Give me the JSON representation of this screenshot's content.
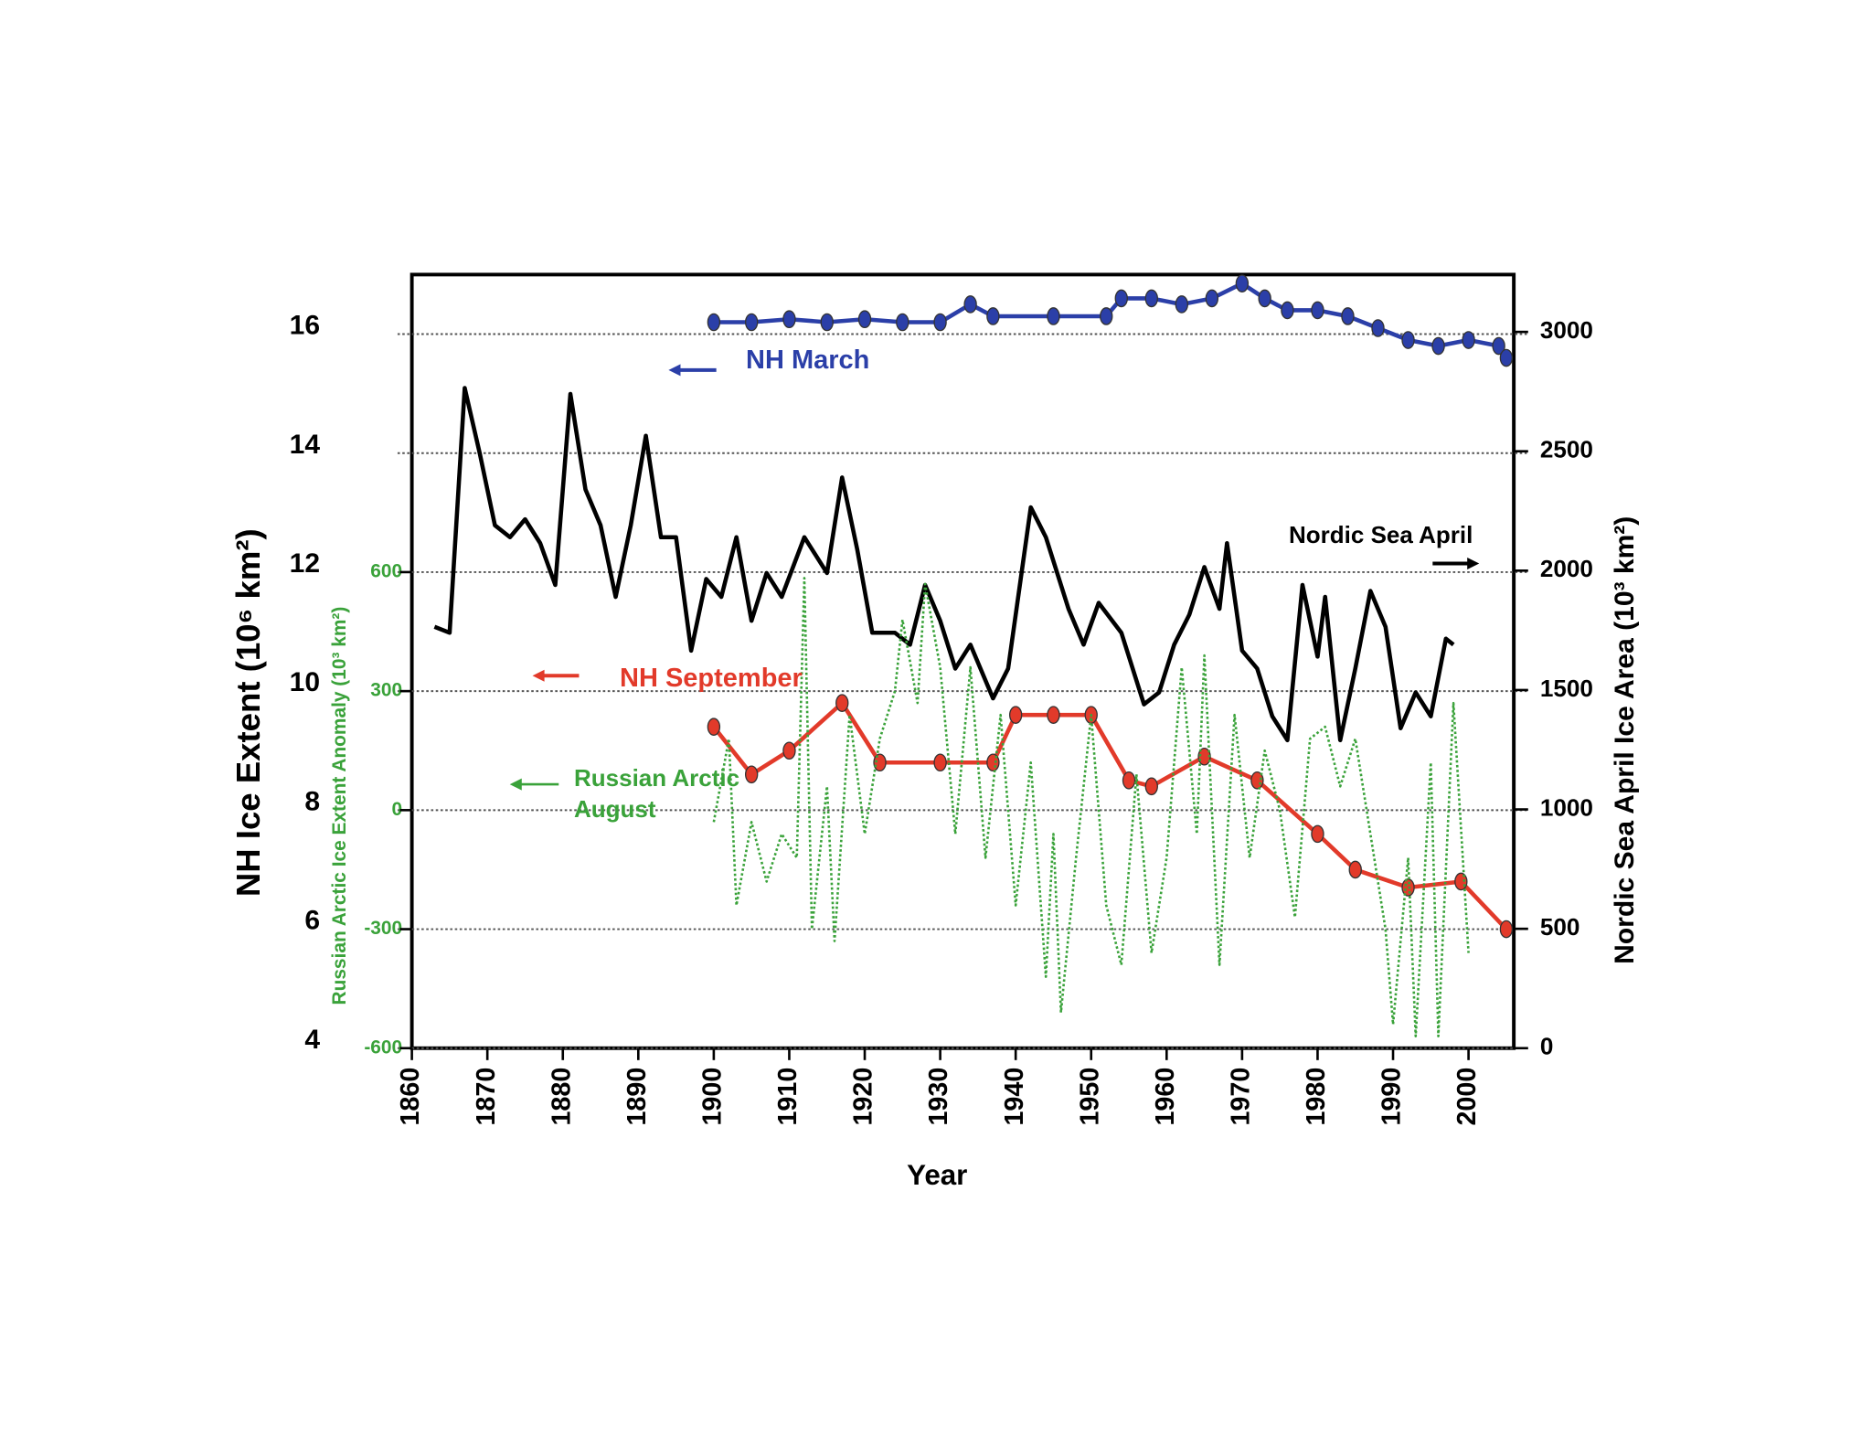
{
  "chart_data": {
    "type": "line",
    "xlabel": "Year",
    "ylabel": "NH Ice Extent (10⁶ km²)",
    "y2label": "Nordic Sea April Ice Area (10³ km²)",
    "y3label": "Russian Arctic Ice Extent Anomaly (10³ km²)",
    "xlim": [
      1860,
      2006
    ],
    "xticks": [
      1860,
      1870,
      1880,
      1890,
      1900,
      1910,
      1920,
      1930,
      1940,
      1950,
      1960,
      1970,
      1980,
      1990,
      2000
    ],
    "ylim": [
      4,
      17
    ],
    "yticks": [
      4,
      6,
      8,
      10,
      12,
      14,
      16
    ],
    "y2lim": [
      0,
      3240
    ],
    "y2ticks": [
      0,
      500,
      1000,
      1500,
      2000,
      2500,
      3000
    ],
    "y3lim": [
      -600,
      1350
    ],
    "y3ticks": [
      -600,
      -300,
      0,
      300,
      600
    ],
    "grid": true,
    "series": [
      {
        "name": "NH March",
        "color": "#2b3fa8",
        "axis": "y",
        "markers": true,
        "x": [
          1900,
          1905,
          1910,
          1915,
          1920,
          1925,
          1930,
          1934,
          1937,
          1945,
          1952,
          1954,
          1958,
          1962,
          1966,
          1970,
          1973,
          1976,
          1980,
          1984,
          1988,
          1992,
          1996,
          2000,
          2004,
          2005
        ],
        "values": [
          16.2,
          16.2,
          16.25,
          16.2,
          16.25,
          16.2,
          16.2,
          16.5,
          16.3,
          16.3,
          16.3,
          16.6,
          16.6,
          16.5,
          16.6,
          16.85,
          16.6,
          16.4,
          16.4,
          16.3,
          16.1,
          15.9,
          15.8,
          15.9,
          15.8,
          15.6
        ]
      },
      {
        "name": "NH September",
        "color": "#e23a2a",
        "axis": "y",
        "markers": true,
        "x": [
          1900,
          1905,
          1910,
          1917,
          1922,
          1930,
          1937,
          1940,
          1945,
          1950,
          1955,
          1958,
          1965,
          1972,
          1980,
          1985,
          1992,
          1999,
          2005
        ],
        "values": [
          9.4,
          8.6,
          9.0,
          9.8,
          8.8,
          8.8,
          8.8,
          9.6,
          9.6,
          9.6,
          8.5,
          8.4,
          8.9,
          8.5,
          7.6,
          7.0,
          6.7,
          6.8,
          6.0
        ]
      },
      {
        "name": "Nordic Sea April",
        "color": "#000000",
        "axis": "y2",
        "markers": false,
        "x": [
          1863,
          1865,
          1867,
          1869,
          1871,
          1873,
          1875,
          1877,
          1879,
          1881,
          1883,
          1885,
          1887,
          1889,
          1891,
          1893,
          1895,
          1897,
          1899,
          1901,
          1903,
          1905,
          1907,
          1909,
          1912,
          1915,
          1917,
          1919,
          1921,
          1924,
          1926,
          1928,
          1930,
          1932,
          1934,
          1937,
          1939,
          1942,
          1944,
          1947,
          1949,
          1951,
          1954,
          1957,
          1959,
          1961,
          1963,
          1965,
          1967,
          1968,
          1970,
          1972,
          1974,
          1976,
          1978,
          1980,
          1981,
          1983,
          1985,
          1987,
          1989,
          1991,
          1993,
          1995,
          1997,
          1998
        ],
        "values": [
          1765,
          1740,
          2765,
          2490,
          2190,
          2140,
          2215,
          2115,
          1940,
          2740,
          2340,
          2190,
          1890,
          2190,
          2565,
          2140,
          2140,
          1665,
          1965,
          1890,
          2140,
          1790,
          1990,
          1890,
          2140,
          1990,
          2390,
          2090,
          1740,
          1740,
          1690,
          1940,
          1790,
          1590,
          1690,
          1465,
          1590,
          2265,
          2140,
          1840,
          1690,
          1865,
          1740,
          1440,
          1490,
          1690,
          1815,
          2015,
          1840,
          2115,
          1665,
          1590,
          1390,
          1290,
          1940,
          1640,
          1890,
          1290,
          1590,
          1915,
          1765,
          1340,
          1490,
          1390,
          1715,
          1690
        ]
      },
      {
        "name": "Russian Arctic August",
        "color": "#3aa23a",
        "axis": "y3",
        "markers": false,
        "dotted": true,
        "x": [
          1900,
          1902,
          1903,
          1905,
          1907,
          1909,
          1911,
          1912,
          1913,
          1915,
          1916,
          1918,
          1920,
          1922,
          1924,
          1925,
          1927,
          1928,
          1930,
          1932,
          1934,
          1936,
          1938,
          1940,
          1942,
          1944,
          1945,
          1946,
          1948,
          1950,
          1952,
          1954,
          1956,
          1958,
          1960,
          1962,
          1964,
          1965,
          1967,
          1969,
          1971,
          1973,
          1975,
          1977,
          1979,
          1981,
          1983,
          1985,
          1987,
          1989,
          1990,
          1992,
          1993,
          1995,
          1996,
          1998,
          2000
        ],
        "values": [
          -30,
          180,
          -240,
          -30,
          -180,
          -60,
          -120,
          585,
          -300,
          60,
          -330,
          240,
          -60,
          180,
          300,
          480,
          270,
          570,
          360,
          -60,
          360,
          -120,
          240,
          -240,
          120,
          -420,
          -60,
          -510,
          -120,
          240,
          -240,
          -390,
          90,
          -360,
          -120,
          360,
          -60,
          390,
          -390,
          240,
          -120,
          150,
          0,
          -270,
          180,
          210,
          60,
          180,
          -60,
          -300,
          -540,
          -120,
          -570,
          120,
          -570,
          270,
          -360
        ]
      }
    ]
  }
}
